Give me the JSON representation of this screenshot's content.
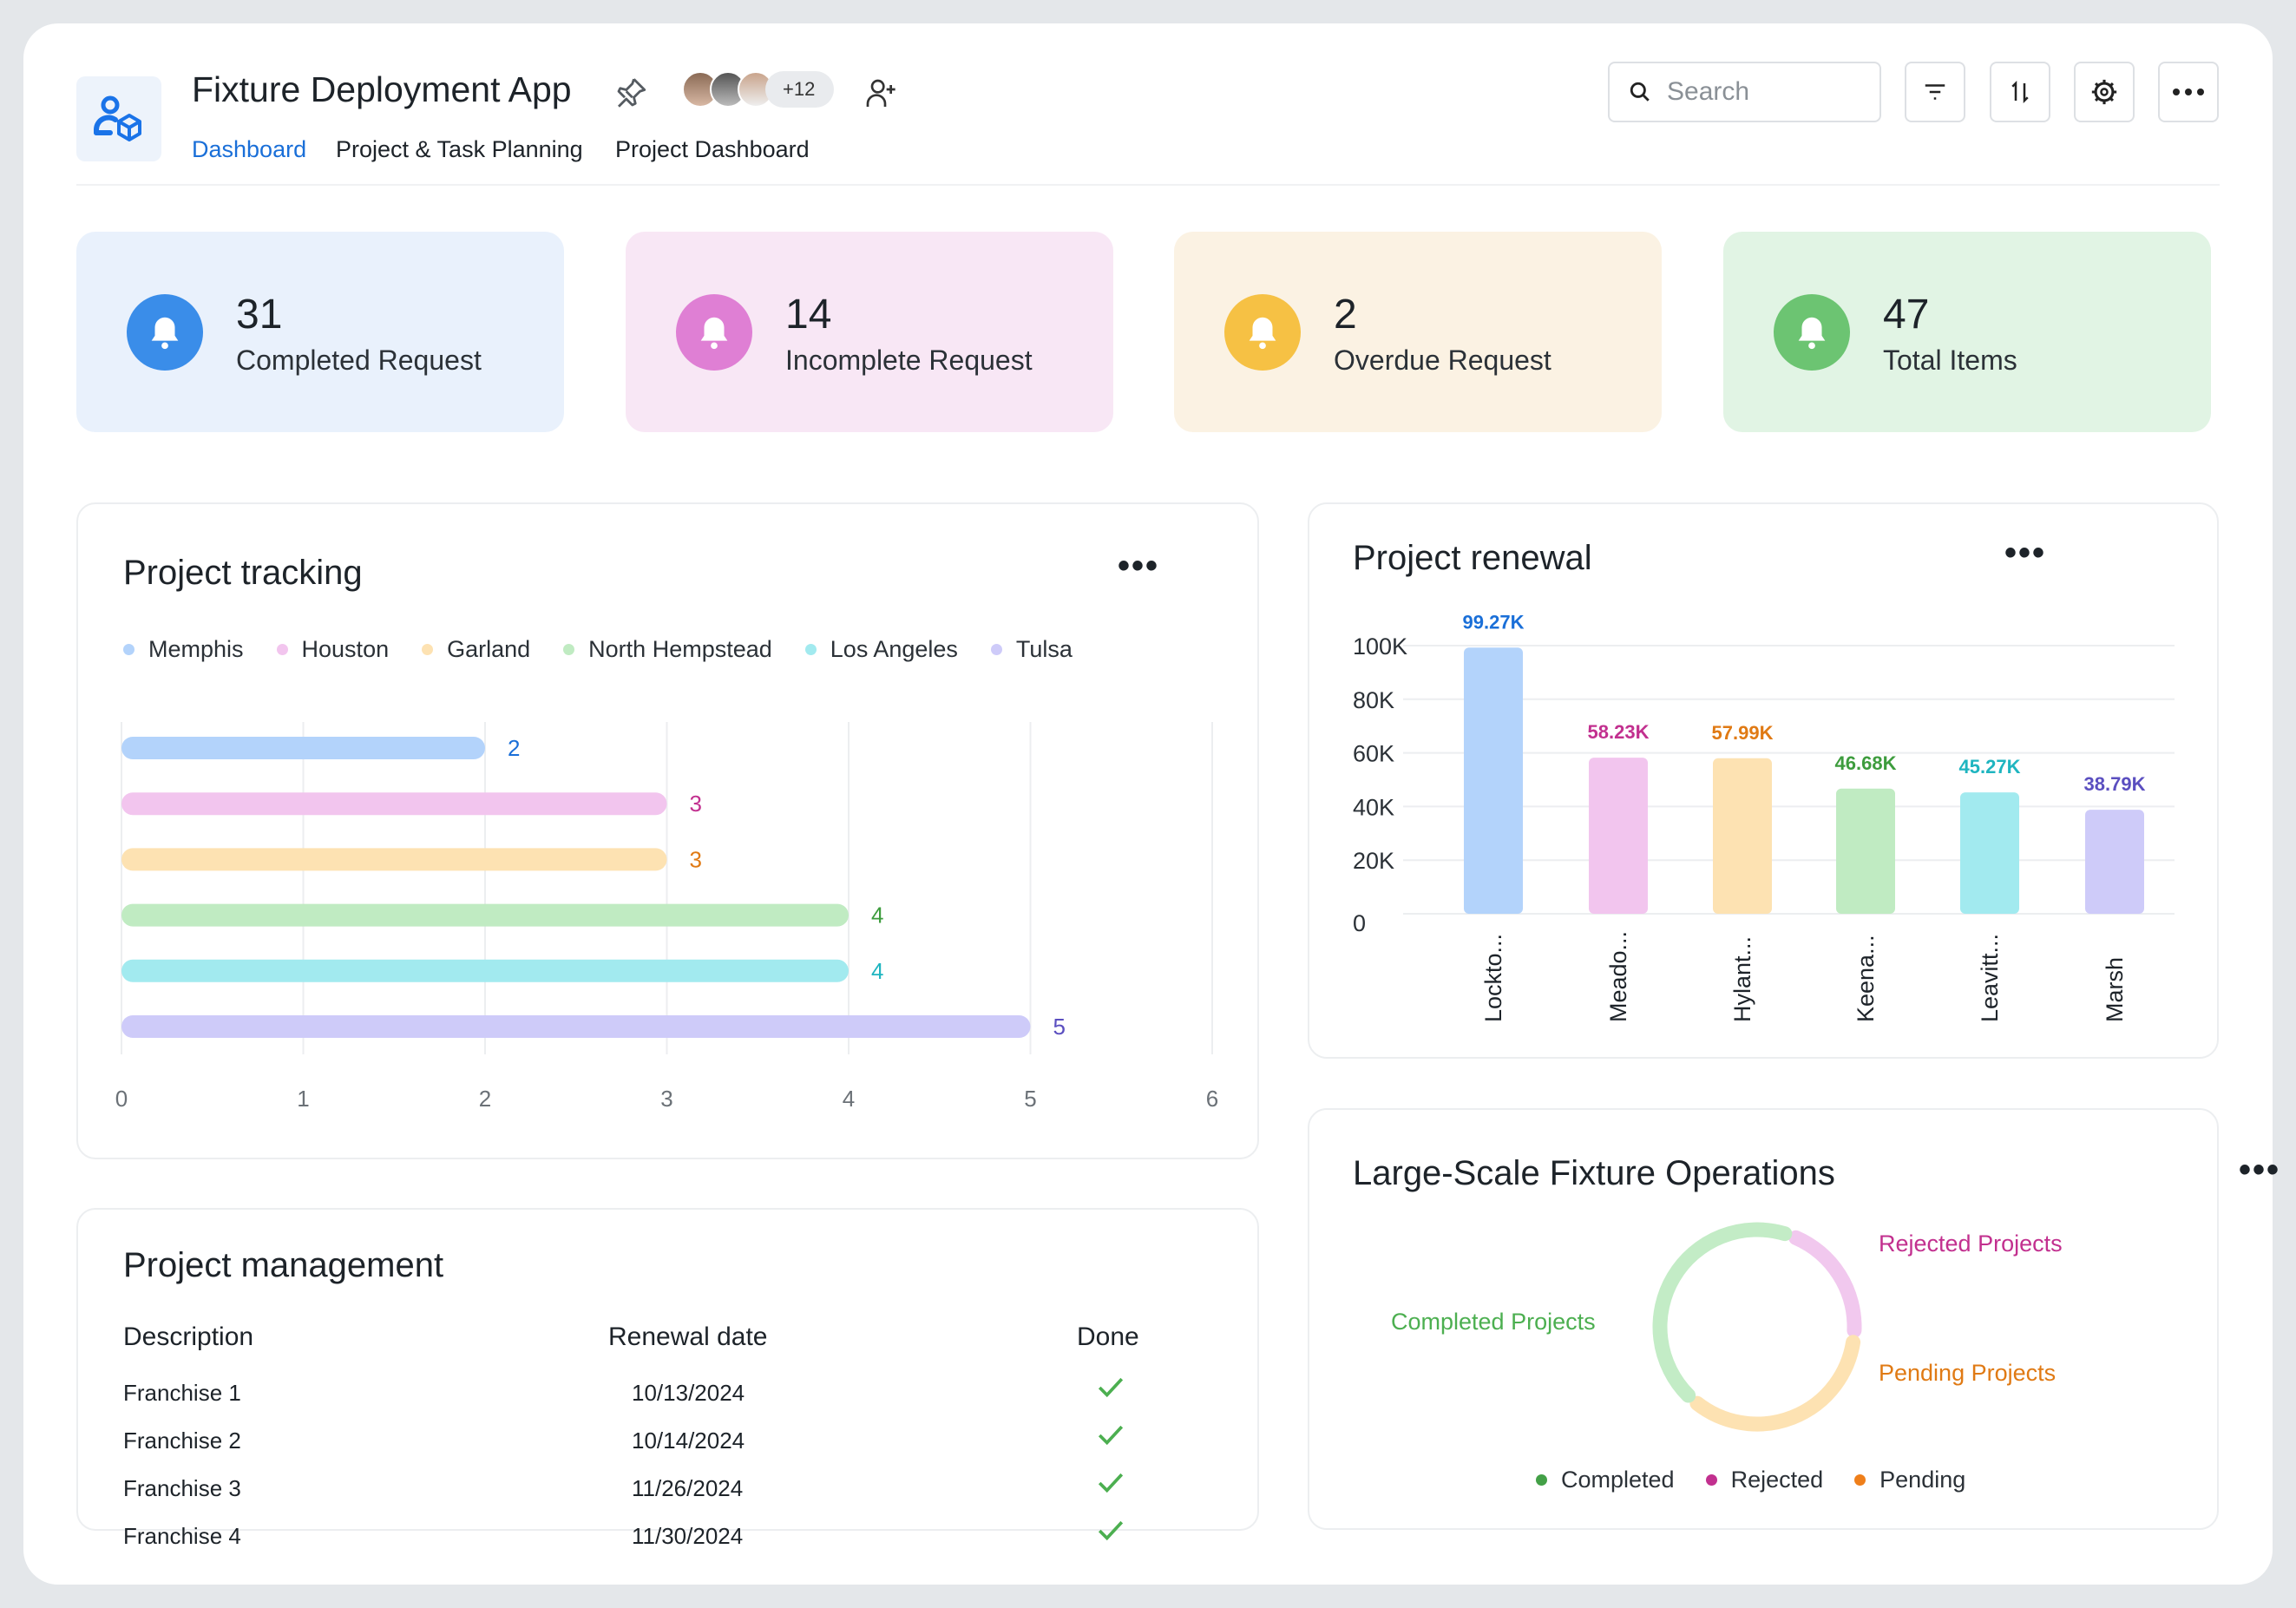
{
  "header": {
    "app_title": "Fixture Deployment App",
    "tabs": [
      {
        "label": "Dashboard",
        "active": true
      },
      {
        "label": "Project & Task Planning"
      },
      {
        "label": "Project Dashboard"
      }
    ],
    "avatars_more": "+12",
    "search_placeholder": "Search"
  },
  "stats": [
    {
      "value": "31",
      "label": "Completed Request",
      "bg": "#e9f1fc",
      "icon_color": "#3a8de9"
    },
    {
      "value": "14",
      "label": "Incomplete Request",
      "bg": "#f8e7f5",
      "icon_color": "#df7fd4"
    },
    {
      "value": "2",
      "label": "Overdue Request",
      "bg": "#fbf2e3",
      "icon_color": "#f6c144"
    },
    {
      "value": "47",
      "label": "Total Items",
      "bg": "#e1f4e4",
      "icon_color": "#6cc472"
    }
  ],
  "tracking": {
    "title": "Project tracking"
  },
  "renewal": {
    "title": "Project renewal"
  },
  "operations": {
    "title": "Large-Scale Fixture Operations"
  },
  "management": {
    "title": "Project management",
    "headers": [
      "Description",
      "Renewal date",
      "Done"
    ],
    "rows": [
      {
        "desc": "Franchise 1",
        "date": "10/13/2024",
        "done": true
      },
      {
        "desc": "Franchise 2",
        "date": "10/14/2024",
        "done": true
      },
      {
        "desc": "Franchise 3",
        "date": "11/26/2024",
        "done": true
      },
      {
        "desc": "Franchise 4",
        "date": "11/30/2024",
        "done": true
      }
    ]
  },
  "chart_data": [
    {
      "type": "bar",
      "orientation": "horizontal",
      "title": "Project tracking",
      "categories": [
        "Memphis",
        "Houston",
        "Garland",
        "North Hempstead",
        "Los Angeles",
        "Tulsa"
      ],
      "values": [
        2,
        3,
        3,
        4,
        4,
        5
      ],
      "colors": [
        "#b3d3fb",
        "#f2c5ee",
        "#fde2b2",
        "#c0ebc2",
        "#a2eaef",
        "#cecbf9"
      ],
      "label_colors": [
        "#1a6fd8",
        "#c2308f",
        "#e07a14",
        "#3d9c3d",
        "#1fb5c0",
        "#5b4fc0"
      ],
      "xticks": [
        "0",
        "1",
        "2",
        "3",
        "4",
        "5",
        "6"
      ],
      "xlim": [
        0,
        6
      ],
      "legend": "top"
    },
    {
      "type": "bar",
      "title": "Project renewal",
      "categories": [
        "Lockto...",
        "Meado...",
        "Hylant...",
        "Keena...",
        "Leavitt...",
        "Marsh"
      ],
      "values": [
        99270,
        58230,
        57990,
        46680,
        45270,
        38790
      ],
      "value_labels": [
        "99.27K",
        "58.23K",
        "57.99K",
        "46.68K",
        "45.27K",
        "38.79K"
      ],
      "colors": [
        "#b3d3fb",
        "#f2c5ee",
        "#fde2b2",
        "#c0ebc2",
        "#a2eaef",
        "#cecbf9"
      ],
      "label_colors": [
        "#1a6fd8",
        "#c2308f",
        "#e07a14",
        "#3d9c3d",
        "#1fb5c0",
        "#5b4fc0"
      ],
      "yticks": [
        "100K",
        "80K",
        "60K",
        "40K",
        "20K",
        "0"
      ],
      "ylim": [
        0,
        100000
      ]
    },
    {
      "type": "pie",
      "variant": "donut",
      "title": "Large-Scale Fixture Operations",
      "slices": [
        {
          "name": "Completed Projects",
          "legend": "Completed",
          "value": 44,
          "color": "#c3ecc6",
          "label_color": "#4caf50",
          "dot": "#43a047"
        },
        {
          "name": "Rejected Projects",
          "legend": "Rejected",
          "value": 21,
          "color": "#f1c8ee",
          "label_color": "#c2308f",
          "dot": "#c2308f"
        },
        {
          "name": "Pending Projects",
          "legend": "Pending",
          "value": 35,
          "color": "#fde2b2",
          "label_color": "#e07a14",
          "dot": "#ef7f1a"
        }
      ],
      "legend": "bottom"
    }
  ]
}
